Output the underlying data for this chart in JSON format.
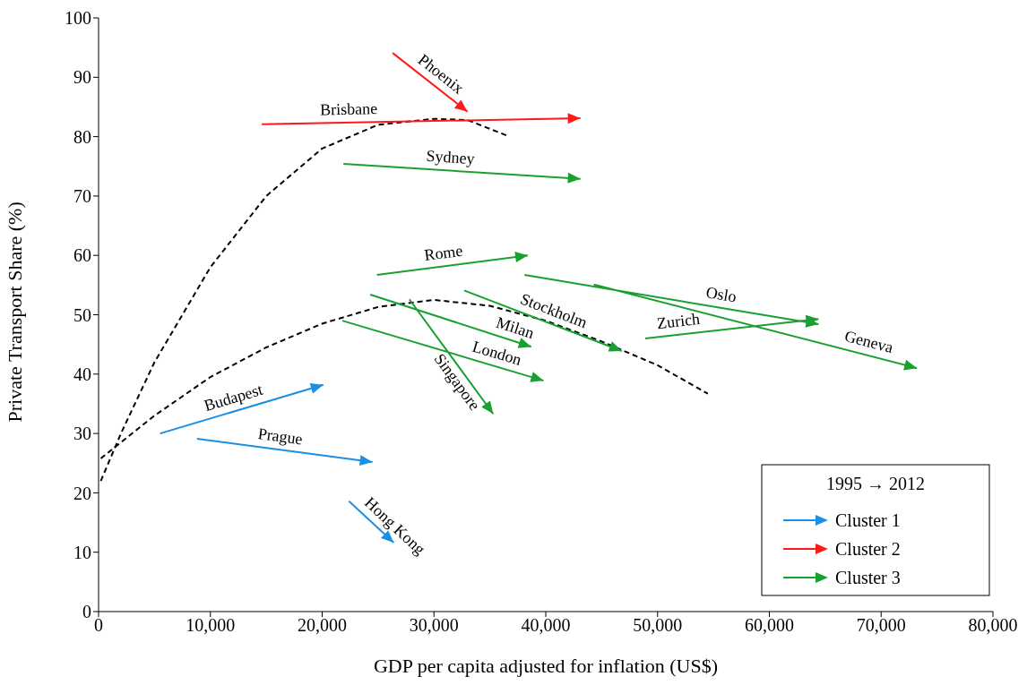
{
  "chart_data": {
    "type": "line",
    "xlabel": "GDP per capita adjusted for inflation (US$)",
    "ylabel": "Private Transport Share (%)",
    "xlim": [
      0,
      80000
    ],
    "xticks": [
      0,
      {
        "value": 10000,
        "label": "10,000"
      },
      {
        "value": 20000,
        "label": "20,000"
      },
      {
        "value": 30000,
        "label": "30,000"
      },
      {
        "value": 40000,
        "label": "40,000"
      },
      {
        "value": 50000,
        "label": "50,000"
      },
      {
        "value": 60000,
        "label": "60,000"
      },
      {
        "value": 70000,
        "label": "70,000"
      },
      {
        "value": 80000,
        "label": "80,000"
      }
    ],
    "ylim": [
      0,
      100
    ],
    "yticks": [
      0,
      10,
      20,
      30,
      40,
      50,
      60,
      70,
      80,
      90,
      100
    ],
    "grid": false,
    "legend": "bottom right",
    "legend_title": "1995 → 2012",
    "series": [
      {
        "color": "#000000",
        "line_style": "dashed",
        "x": [
          200,
          2000,
          5000,
          10000,
          15000,
          20000,
          25000,
          30000,
          33000,
          36500
        ],
        "values": [
          22,
          30,
          42,
          58,
          70,
          78,
          82,
          83,
          82.8,
          80.2
        ]
      },
      {
        "color": "#000000",
        "line_style": "dashed",
        "x": [
          200,
          2000,
          5000,
          10000,
          15000,
          20000,
          25000,
          30000,
          35000,
          40000,
          45000,
          50000,
          54500
        ],
        "values": [
          25.8,
          28.5,
          33,
          39.5,
          44.5,
          48.5,
          51.3,
          52.5,
          51.5,
          49,
          45.5,
          41.5,
          36.7
        ]
      },
      {
        "name": "Cluster 1",
        "color": "#1a8fe3",
        "line_style": "solid",
        "x": [
          5500,
          20100,
          null,
          8800,
          24500,
          null,
          22400,
          26400
        ],
        "values": [
          30,
          38.2,
          null,
          29.1,
          25.2,
          null,
          18.6,
          11.6
        ]
      },
      {
        "name": "Cluster 2",
        "color": "#ff1a1a",
        "line_style": "solid",
        "x": [
          26300,
          33000,
          null,
          14600,
          43100
        ],
        "values": [
          94.1,
          84.2,
          null,
          82.1,
          83.1
        ]
      },
      {
        "name": "Cluster 3",
        "color": "#18a030",
        "line_style": "solid",
        "x": [
          21900,
          43100,
          null,
          24900,
          38400,
          null,
          24300,
          38700,
          null,
          21800,
          39800,
          null,
          27800,
          35300,
          null,
          32700,
          46800,
          null,
          38100,
          64400,
          null,
          48900,
          64400,
          null,
          44300,
          73200
        ],
        "values": [
          75.4,
          72.9,
          null,
          56.7,
          60,
          null,
          53.4,
          44.6,
          null,
          49,
          38.9,
          null,
          52.6,
          33.3,
          null,
          54.1,
          43.9,
          null,
          56.7,
          48.4,
          null,
          46,
          49.3,
          null,
          55.1,
          41
        ]
      }
    ],
    "annotations": [
      {
        "text": "Budapest",
        "x": 12400,
        "y": 33.9
      },
      {
        "text": "Prague",
        "x": 16100,
        "y": 27.3
      },
      {
        "text": "Hong Kong",
        "x": 25700,
        "y": 12.8
      },
      {
        "text": "Phoenix",
        "x": 29900,
        "y": 88.8
      },
      {
        "text": "Brisbane",
        "x": 22400,
        "y": 82.4
      },
      {
        "text": "Sydney",
        "x": 31400,
        "y": 74.3
      },
      {
        "text": "Rome",
        "x": 31000,
        "y": 58.2
      },
      {
        "text": "Milan",
        "x": 36900,
        "y": 45.7
      },
      {
        "text": "London",
        "x": 35300,
        "y": 41.4
      },
      {
        "text": "Singapore",
        "x": 32800,
        "y": 39.7
      },
      {
        "text": "Stockholm",
        "x": 40300,
        "y": 48.6
      },
      {
        "text": "Oslo",
        "x": 55500,
        "y": 51.2
      },
      {
        "text": "Zurich",
        "x": 52000,
        "y": 46.7
      },
      {
        "text": "Geneva",
        "x": 68600,
        "y": 43.3
      }
    ]
  }
}
